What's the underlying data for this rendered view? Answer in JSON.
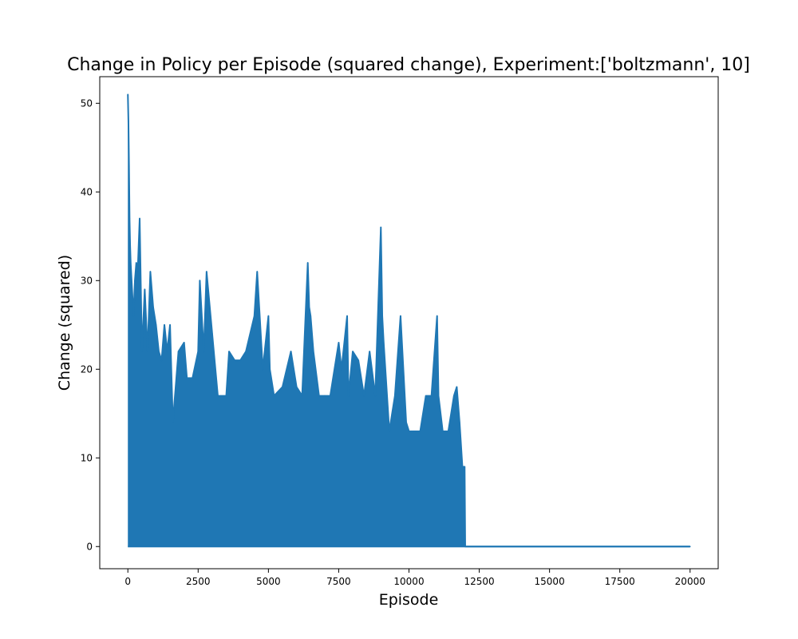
{
  "chart_data": {
    "type": "line",
    "title": "Change in Policy per Episode (squared change), Experiment:['boltzmann', 10]",
    "xlabel": "Episode",
    "ylabel": "Change (squared)",
    "xlim": [
      -1000,
      21000
    ],
    "ylim": [
      -2.5,
      53
    ],
    "xticks": [
      0,
      2500,
      5000,
      7500,
      10000,
      12500,
      15000,
      17500,
      20000
    ],
    "yticks": [
      0,
      10,
      20,
      30,
      40,
      50
    ],
    "grid": false,
    "legend": "none",
    "series": [
      {
        "color": "#1f77b4",
        "x": [
          0,
          20,
          40,
          60,
          80,
          100,
          150,
          200,
          250,
          300,
          350,
          420,
          500,
          600,
          700,
          800,
          900,
          1000,
          1100,
          1200,
          1300,
          1400,
          1500,
          1600,
          1800,
          2000,
          2100,
          2300,
          2500,
          2560,
          2700,
          2800,
          3000,
          3200,
          3500,
          3600,
          3800,
          4000,
          4200,
          4500,
          4600,
          4800,
          5000,
          5050,
          5200,
          5500,
          5800,
          6000,
          6200,
          6400,
          6450,
          6500,
          6600,
          6800,
          7000,
          7200,
          7500,
          7600,
          7800,
          7850,
          8000,
          8200,
          8400,
          8600,
          8800,
          9000,
          9050,
          9100,
          9300,
          9500,
          9700,
          9900,
          10000,
          10200,
          10400,
          10600,
          10800,
          11000,
          11050,
          11200,
          11400,
          11600,
          11700,
          11800,
          11900,
          11980,
          12000,
          20000
        ],
        "y": [
          51,
          48,
          43,
          37,
          34,
          32,
          29,
          26,
          30,
          32,
          31,
          37,
          22,
          29,
          22,
          31,
          27,
          25,
          22,
          21,
          25,
          22,
          25,
          14,
          22,
          23,
          19,
          19,
          22,
          30,
          22,
          31,
          24,
          17,
          17,
          22,
          21,
          21,
          22,
          26,
          31,
          20,
          26,
          20,
          17,
          18,
          22,
          18,
          17,
          32,
          27,
          26,
          22,
          17,
          17,
          17,
          23,
          20,
          26,
          17,
          22,
          21,
          17,
          22,
          17,
          36,
          26,
          23,
          13,
          17,
          26,
          14,
          13,
          13,
          13,
          17,
          17,
          26,
          17,
          13,
          13,
          17,
          18,
          14,
          9,
          9,
          0,
          0
        ]
      }
    ]
  }
}
